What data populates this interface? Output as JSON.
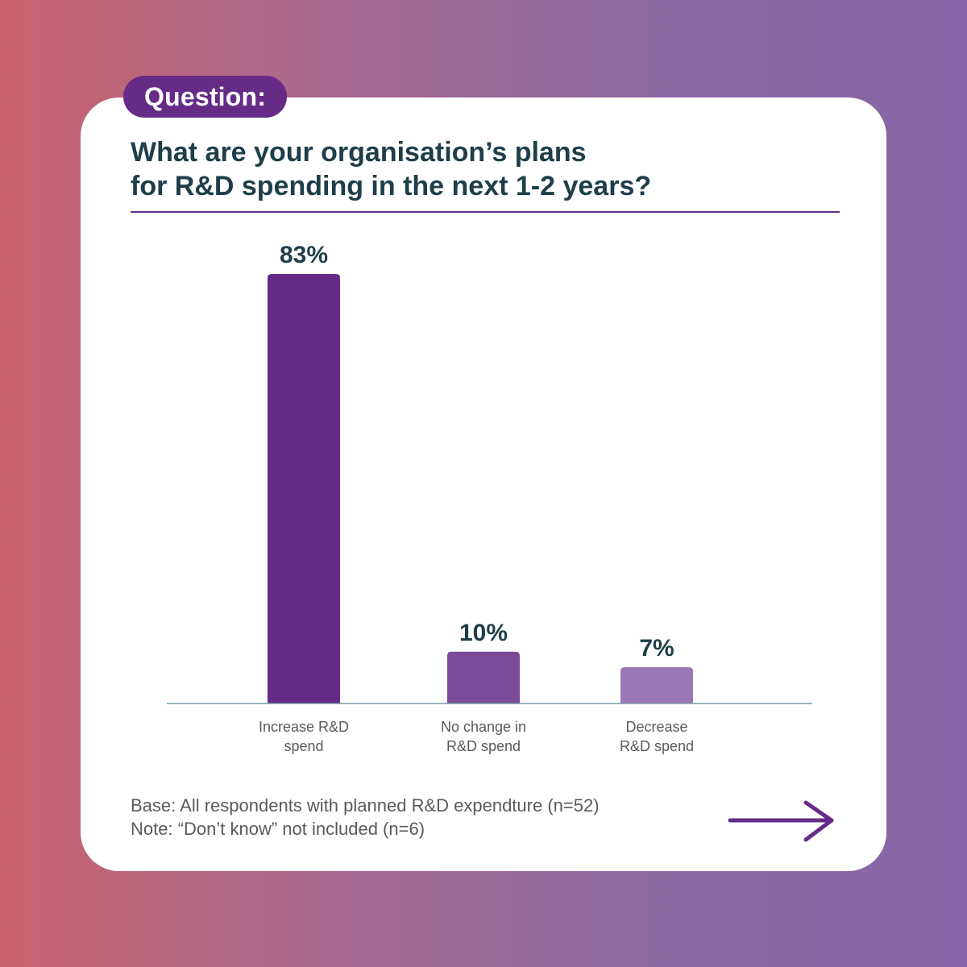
{
  "badge": {
    "label": "Question:"
  },
  "question": {
    "line1": "What are your organisation’s plans",
    "line2": "for R&D spending in the next 1-2 years?"
  },
  "chart_data": {
    "type": "bar",
    "title": "What are your organisation’s plans for R&D spending in the next 1-2 years?",
    "categories": [
      [
        "Increase R&D",
        "spend"
      ],
      [
        "No change in",
        "R&D spend"
      ],
      [
        "Decrease",
        "R&D spend"
      ]
    ],
    "values": [
      83,
      10,
      7
    ],
    "value_labels": [
      "83%",
      "10%",
      "7%"
    ],
    "bar_colors": [
      "#652b87",
      "#7b4a99",
      "#9a77b5"
    ],
    "ylim": [
      0,
      100
    ],
    "xlabel": "",
    "ylabel": "",
    "grid": false,
    "legend": "none"
  },
  "footnotes": {
    "base": "Base: All respondents with planned R&D expendture (n=52)",
    "note": "Note: “Don’t know” not included (n=6)"
  },
  "colors": {
    "accent": "#652b87",
    "text_dark": "#1e3e4a",
    "text_muted": "#5a5a5a",
    "axis": "#7a9aa8"
  },
  "nav": {
    "next_icon": "arrow-right-icon"
  }
}
